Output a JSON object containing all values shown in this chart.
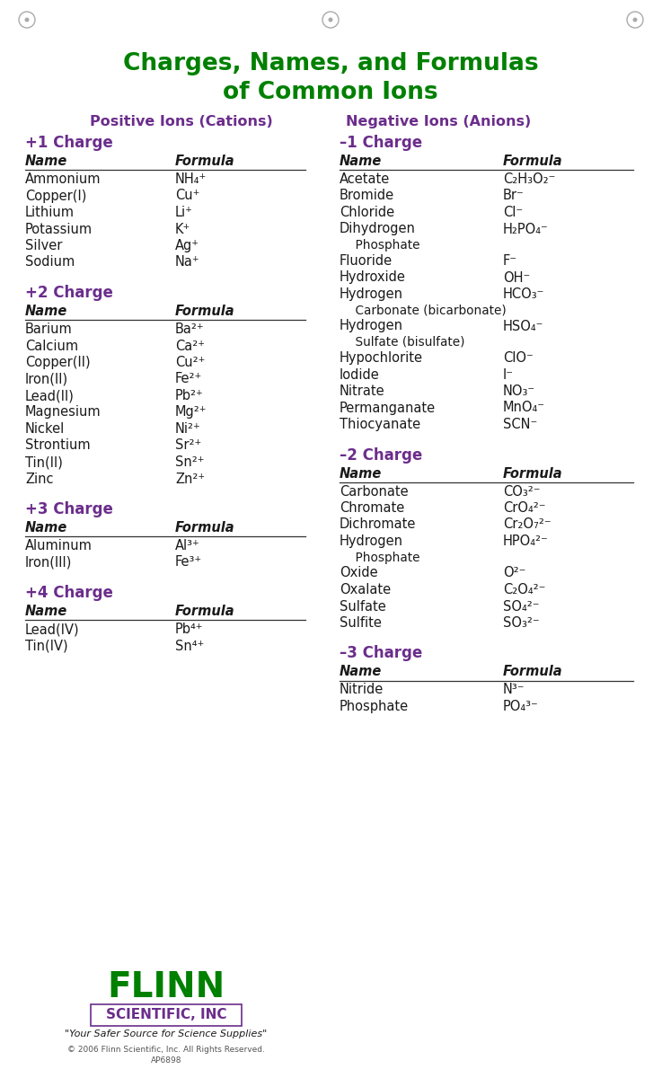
{
  "title_line1": "Charges, Names, and Formulas",
  "title_line2": "of Common Ions",
  "title_color": "#008000",
  "subtitle_left": "Positive Ions (Cations)",
  "subtitle_right": "Negative Ions (Anions)",
  "subtitle_color": "#6B2D8B",
  "charge_color": "#6B2D8B",
  "header_color": "#1a1a1a",
  "text_color": "#1a1a1a",
  "bg_color": "#FFFFFF",
  "flinn_color": "#008000",
  "flinn_sci_color": "#6B2D8B",
  "left_sections": [
    {
      "charge": "+1 Charge",
      "entries": [
        {
          "name": "Ammonium",
          "formula": "NH₄⁺",
          "extra": null
        },
        {
          "name": "Copper(I)",
          "formula": "Cu⁺",
          "extra": null
        },
        {
          "name": "Lithium",
          "formula": "Li⁺",
          "extra": null
        },
        {
          "name": "Potassium",
          "formula": "K⁺",
          "extra": null
        },
        {
          "name": "Silver",
          "formula": "Ag⁺",
          "extra": null
        },
        {
          "name": "Sodium",
          "formula": "Na⁺",
          "extra": null
        }
      ]
    },
    {
      "charge": "+2 Charge",
      "entries": [
        {
          "name": "Barium",
          "formula": "Ba²⁺",
          "extra": null
        },
        {
          "name": "Calcium",
          "formula": "Ca²⁺",
          "extra": null
        },
        {
          "name": "Copper(II)",
          "formula": "Cu²⁺",
          "extra": null
        },
        {
          "name": "Iron(II)",
          "formula": "Fe²⁺",
          "extra": null
        },
        {
          "name": "Lead(II)",
          "formula": "Pb²⁺",
          "extra": null
        },
        {
          "name": "Magnesium",
          "formula": "Mg²⁺",
          "extra": null
        },
        {
          "name": "Nickel",
          "formula": "Ni²⁺",
          "extra": null
        },
        {
          "name": "Strontium",
          "formula": "Sr²⁺",
          "extra": null
        },
        {
          "name": "Tin(II)",
          "formula": "Sn²⁺",
          "extra": null
        },
        {
          "name": "Zinc",
          "formula": "Zn²⁺",
          "extra": null
        }
      ]
    },
    {
      "charge": "+3 Charge",
      "entries": [
        {
          "name": "Aluminum",
          "formula": "Al³⁺",
          "extra": null
        },
        {
          "name": "Iron(III)",
          "formula": "Fe³⁺",
          "extra": null
        }
      ]
    },
    {
      "charge": "+4 Charge",
      "entries": [
        {
          "name": "Lead(IV)",
          "formula": "Pb⁴⁺",
          "extra": null
        },
        {
          "name": "Tin(IV)",
          "formula": "Sn⁴⁺",
          "extra": null
        }
      ]
    }
  ],
  "right_sections": [
    {
      "charge": "–1 Charge",
      "entries": [
        {
          "name": "Acetate",
          "formula": "C₂H₃O₂⁻",
          "extra": null
        },
        {
          "name": "Bromide",
          "formula": "Br⁻",
          "extra": null
        },
        {
          "name": "Chloride",
          "formula": "Cl⁻",
          "extra": null
        },
        {
          "name": "Dihydrogen",
          "formula": "H₂PO₄⁻",
          "extra": "    Phosphate"
        },
        {
          "name": "Fluoride",
          "formula": "F⁻",
          "extra": null
        },
        {
          "name": "Hydroxide",
          "formula": "OH⁻",
          "extra": null
        },
        {
          "name": "Hydrogen",
          "formula": "HCO₃⁻",
          "extra": "    Carbonate (bicarbonate)"
        },
        {
          "name": "Hydrogen",
          "formula": "HSO₄⁻",
          "extra": "    Sulfate (bisulfate)"
        },
        {
          "name": "Hypochlorite",
          "formula": "ClO⁻",
          "extra": null
        },
        {
          "name": "Iodide",
          "formula": "I⁻",
          "extra": null
        },
        {
          "name": "Nitrate",
          "formula": "NO₃⁻",
          "extra": null
        },
        {
          "name": "Permanganate",
          "formula": "MnO₄⁻",
          "extra": null
        },
        {
          "name": "Thiocyanate",
          "formula": "SCN⁻",
          "extra": null
        }
      ]
    },
    {
      "charge": "–2 Charge",
      "entries": [
        {
          "name": "Carbonate",
          "formula": "CO₃²⁻",
          "extra": null
        },
        {
          "name": "Chromate",
          "formula": "CrO₄²⁻",
          "extra": null
        },
        {
          "name": "Dichromate",
          "formula": "Cr₂O₇²⁻",
          "extra": null
        },
        {
          "name": "Hydrogen",
          "formula": "HPO₄²⁻",
          "extra": "    Phosphate"
        },
        {
          "name": "Oxide",
          "formula": "O²⁻",
          "extra": null
        },
        {
          "name": "Oxalate",
          "formula": "C₂O₄²⁻",
          "extra": null
        },
        {
          "name": "Sulfate",
          "formula": "SO₄²⁻",
          "extra": null
        },
        {
          "name": "Sulfite",
          "formula": "SO₃²⁻",
          "extra": null
        }
      ]
    },
    {
      "charge": "–3 Charge",
      "entries": [
        {
          "name": "Nitride",
          "formula": "N³⁻",
          "extra": null
        },
        {
          "name": "Phosphate",
          "formula": "PO₄³⁻",
          "extra": null
        }
      ]
    }
  ]
}
